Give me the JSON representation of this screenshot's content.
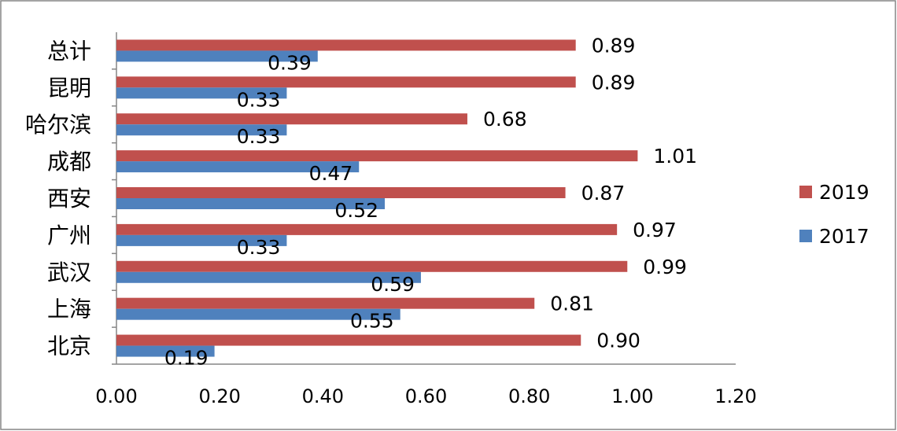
{
  "chart_data": {
    "type": "bar",
    "orientation": "horizontal",
    "categories": [
      "北京",
      "上海",
      "武汉",
      "广州",
      "西安",
      "成都",
      "哈尔滨",
      "昆明",
      "总计"
    ],
    "series": [
      {
        "name": "2019",
        "color": "#C0504D",
        "values": [
          0.9,
          0.81,
          0.99,
          0.97,
          0.87,
          1.01,
          0.68,
          0.89,
          0.89
        ],
        "labels": [
          "0.90",
          "0.81",
          "0.99",
          "0.97",
          "0.87",
          "1.01",
          "0.68",
          "0.89",
          "0.89"
        ]
      },
      {
        "name": "2017",
        "color": "#4F81BD",
        "values": [
          0.19,
          0.55,
          0.59,
          0.33,
          0.52,
          0.47,
          0.33,
          0.33,
          0.39
        ],
        "labels": [
          "0.19",
          "0.55",
          "0.59",
          "0.33",
          "0.52",
          "0.47",
          "0.33",
          "0.33",
          "0.39"
        ]
      }
    ],
    "xlim": [
      0,
      1.2
    ],
    "xticks": [
      "0.00",
      "0.20",
      "0.40",
      "0.60",
      "0.80",
      "1.00",
      "1.20"
    ],
    "grid": false,
    "legend": "right",
    "title": "",
    "xlabel": "",
    "ylabel": ""
  }
}
